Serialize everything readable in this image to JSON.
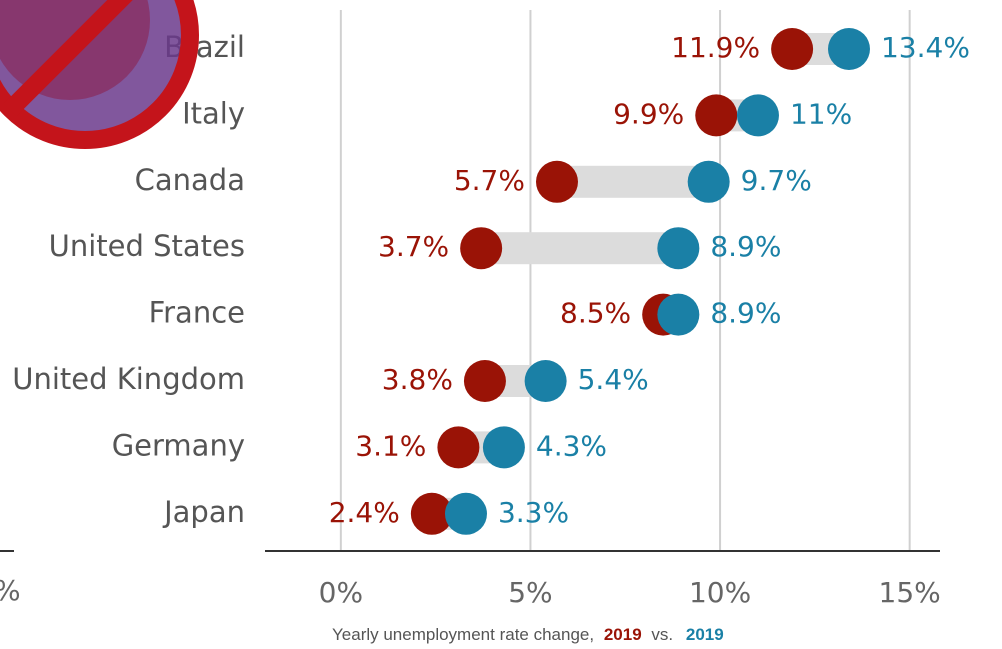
{
  "chart_data": {
    "type": "dumbbell",
    "categories": [
      "Brazil",
      "Italy",
      "Canada",
      "United States",
      "France",
      "United Kingdom",
      "Germany",
      "Japan"
    ],
    "series": [
      {
        "name": "2019",
        "color": "#9a1306",
        "values": [
          11.9,
          9.9,
          5.7,
          3.7,
          8.5,
          3.8,
          3.1,
          2.4
        ],
        "value_labels": [
          "11.9%",
          "9.9%",
          "5.7%",
          "3.7%",
          "8.5%",
          "3.8%",
          "3.1%",
          "2.4%"
        ]
      },
      {
        "name": "2019",
        "color": "#1a80a6",
        "values": [
          13.4,
          11,
          9.7,
          8.9,
          8.9,
          5.4,
          4.3,
          3.3
        ],
        "value_labels": [
          "13.4%",
          "11%",
          "9.7%",
          "8.9%",
          "8.9%",
          "5.4%",
          "4.3%",
          "3.3%"
        ]
      }
    ],
    "xlim": [
      -2,
      15.8
    ],
    "xticks": [
      {
        "value": 0,
        "label": "0%"
      },
      {
        "value": 5,
        "label": "5%"
      },
      {
        "value": 10,
        "label": "10%"
      },
      {
        "value": 15,
        "label": "15%"
      }
    ],
    "grid": true,
    "x_label": "Yearly unemployment rate change,",
    "x_label_joiner": "vs.",
    "side_fragment": "%"
  }
}
